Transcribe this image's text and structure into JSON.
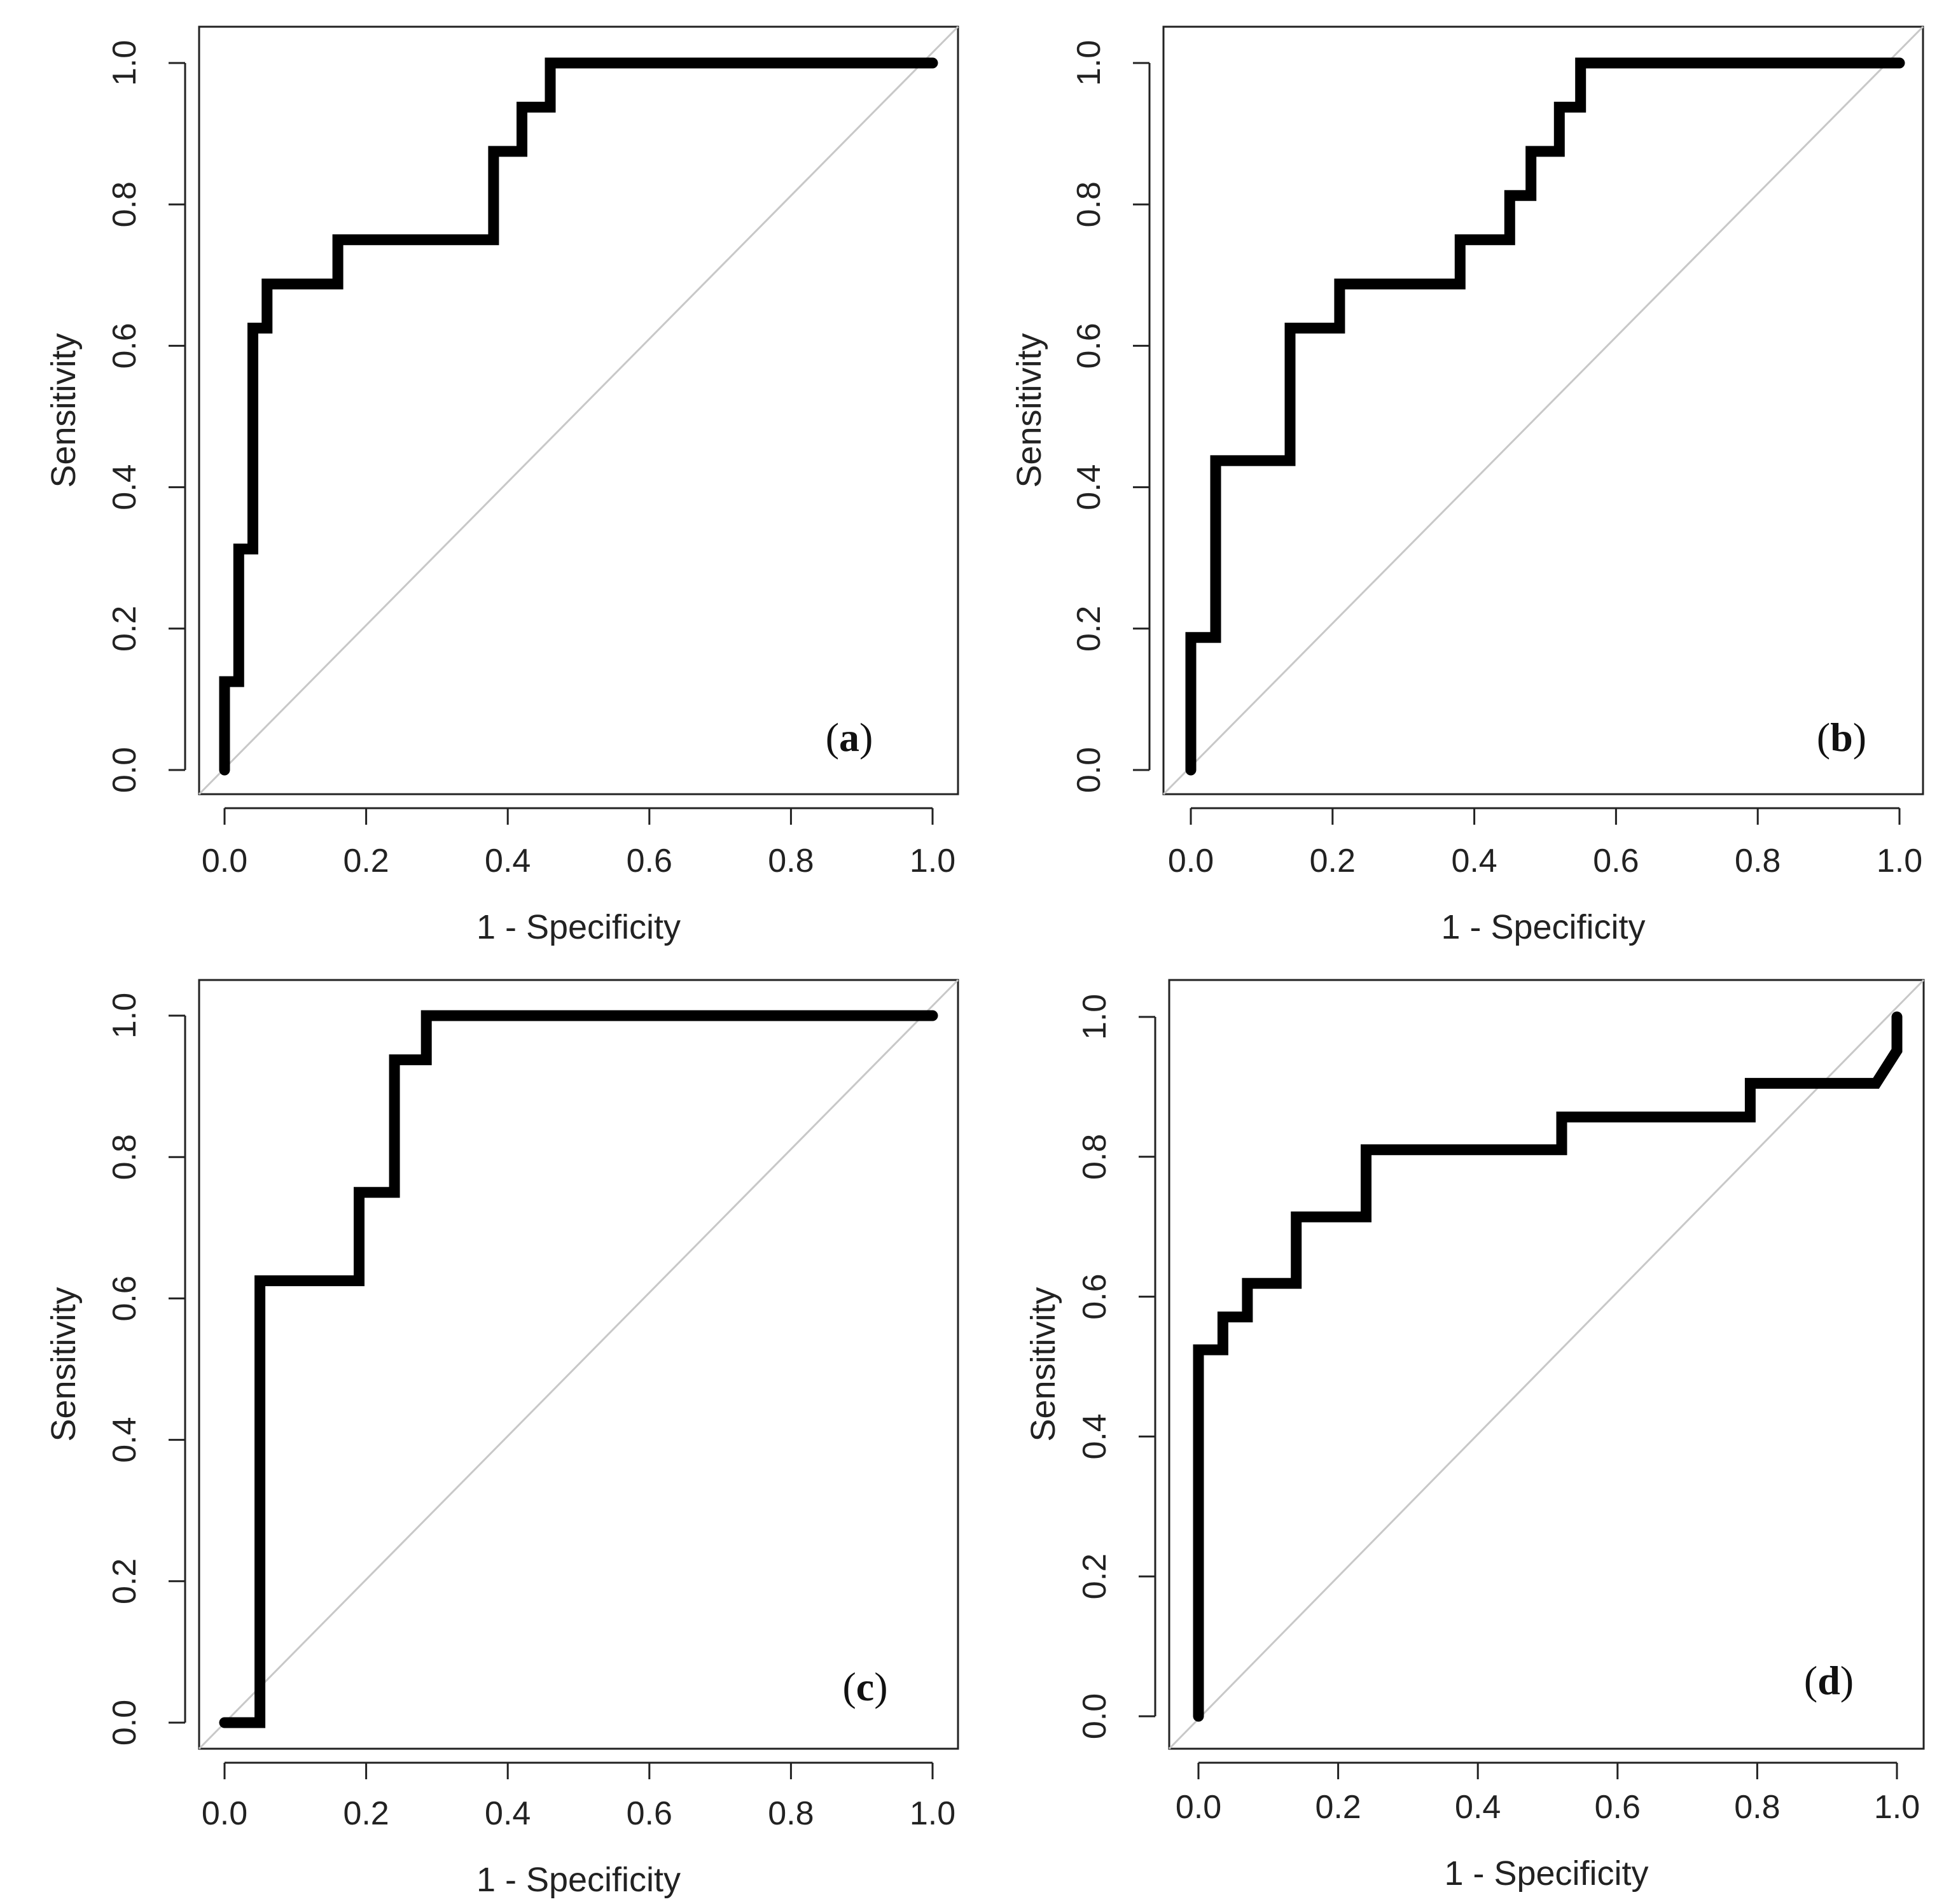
{
  "chart_data": [
    {
      "type": "line",
      "panel": "a",
      "label_letter": "a",
      "xlabel": "1 - Specificity",
      "ylabel": "Sensitivity",
      "xlim": [
        0,
        1
      ],
      "ylim": [
        0,
        1
      ],
      "ticks": [
        "0.0",
        "0.2",
        "0.4",
        "0.6",
        "0.8",
        "1.0"
      ],
      "reference_line": "diagonal",
      "x": [
        0,
        0,
        0.02,
        0.02,
        0.04,
        0.04,
        0.06,
        0.06,
        0.16,
        0.16,
        0.38,
        0.38,
        0.42,
        0.42,
        0.46,
        0.46,
        1.0
      ],
      "y": [
        0,
        0.125,
        0.125,
        0.3125,
        0.3125,
        0.625,
        0.625,
        0.6875,
        0.6875,
        0.75,
        0.75,
        0.875,
        0.875,
        0.9375,
        0.9375,
        1.0,
        1.0
      ]
    },
    {
      "type": "line",
      "panel": "b",
      "label_letter": "b",
      "xlabel": "1 - Specificity",
      "ylabel": "Sensitivity",
      "xlim": [
        0,
        1
      ],
      "ylim": [
        0,
        1
      ],
      "ticks": [
        "0.0",
        "0.2",
        "0.4",
        "0.6",
        "0.8",
        "1.0"
      ],
      "reference_line": "diagonal",
      "x": [
        0,
        0,
        0.035,
        0.035,
        0.14,
        0.14,
        0.21,
        0.21,
        0.38,
        0.38,
        0.45,
        0.45,
        0.48,
        0.48,
        0.52,
        0.52,
        0.55,
        0.55,
        1.0
      ],
      "y": [
        0,
        0.1875,
        0.1875,
        0.4375,
        0.4375,
        0.625,
        0.625,
        0.6875,
        0.6875,
        0.75,
        0.75,
        0.8125,
        0.8125,
        0.875,
        0.875,
        0.9375,
        0.9375,
        1.0,
        1.0
      ]
    },
    {
      "type": "line",
      "panel": "c",
      "label_letter": "c",
      "xlabel": "1 - Specificity",
      "ylabel": "Sensitivity",
      "xlim": [
        0,
        1
      ],
      "ylim": [
        0,
        1
      ],
      "ticks": [
        "0.0",
        "0.2",
        "0.4",
        "0.6",
        "0.8",
        "1.0"
      ],
      "reference_line": "diagonal",
      "x": [
        0,
        0.05,
        0.05,
        0.19,
        0.19,
        0.24,
        0.24,
        0.285,
        0.285,
        1.0
      ],
      "y": [
        0,
        0,
        0.625,
        0.625,
        0.75,
        0.75,
        0.9375,
        0.9375,
        1.0,
        1.0
      ]
    },
    {
      "type": "line",
      "panel": "d",
      "label_letter": "d",
      "xlabel": "1 - Specificity",
      "ylabel": "Sensitivity",
      "xlim": [
        0,
        1
      ],
      "ylim": [
        0,
        1
      ],
      "ticks": [
        "0.0",
        "0.2",
        "0.4",
        "0.6",
        "0.8",
        "1.0"
      ],
      "reference_line": "diagonal",
      "x": [
        0,
        0,
        0.035,
        0.035,
        0.07,
        0.07,
        0.14,
        0.14,
        0.24,
        0.24,
        0.52,
        0.52,
        0.79,
        0.79,
        0.97,
        1.0,
        1.0
      ],
      "y": [
        0,
        0.524,
        0.524,
        0.571,
        0.571,
        0.619,
        0.619,
        0.714,
        0.714,
        0.81,
        0.81,
        0.857,
        0.857,
        0.905,
        0.905,
        0.952,
        1.0
      ]
    }
  ]
}
